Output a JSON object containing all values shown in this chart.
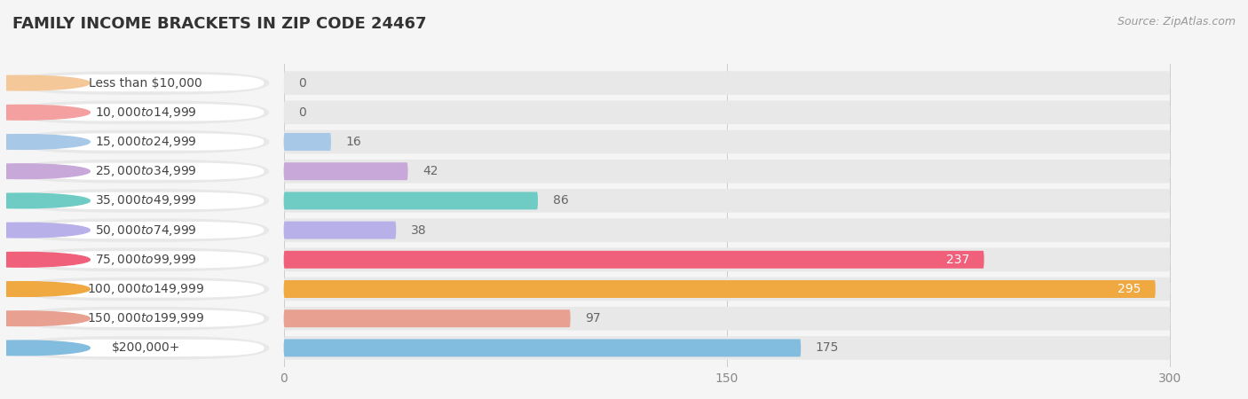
{
  "title": "FAMILY INCOME BRACKETS IN ZIP CODE 24467",
  "source": "Source: ZipAtlas.com",
  "categories": [
    "Less than $10,000",
    "$10,000 to $14,999",
    "$15,000 to $24,999",
    "$25,000 to $34,999",
    "$35,000 to $49,999",
    "$50,000 to $74,999",
    "$75,000 to $99,999",
    "$100,000 to $149,999",
    "$150,000 to $199,999",
    "$200,000+"
  ],
  "values": [
    0,
    0,
    16,
    42,
    86,
    38,
    237,
    295,
    97,
    175
  ],
  "bar_colors": [
    "#F5C89A",
    "#F4A0A0",
    "#A8C8E8",
    "#C8A8D8",
    "#6ECCC5",
    "#B8B0E8",
    "#F0607A",
    "#F0A840",
    "#E8A090",
    "#82BCDF"
  ],
  "label_colors": [
    "#888888",
    "#888888",
    "#888888",
    "#888888",
    "#888888",
    "#888888",
    "#ffffff",
    "#ffffff",
    "#888888",
    "#888888"
  ],
  "data_max": 300,
  "xticks": [
    0,
    150,
    300
  ],
  "bg_color": "#f5f5f5",
  "row_bg_color": "#e8e8e8",
  "title_fontsize": 13,
  "source_fontsize": 9,
  "value_fontsize": 10,
  "cat_fontsize": 10,
  "tick_fontsize": 10
}
